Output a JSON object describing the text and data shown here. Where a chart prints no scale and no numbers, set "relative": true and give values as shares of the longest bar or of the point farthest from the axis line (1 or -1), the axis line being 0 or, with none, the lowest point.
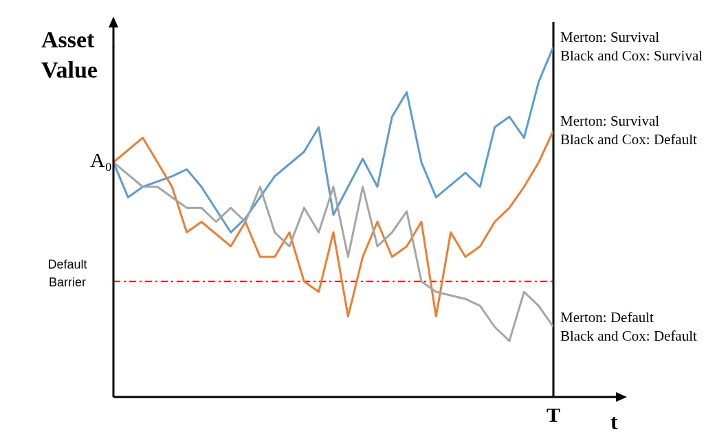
{
  "chart_data": {
    "type": "line",
    "relative": true,
    "ylabel": "Asset Value",
    "xlabel": "t",
    "categories": [
      null,
      null,
      null,
      null,
      null,
      null,
      null,
      null,
      null,
      null,
      null,
      null,
      null,
      null,
      null,
      null,
      null,
      null,
      null,
      null,
      null,
      null,
      null,
      null,
      null,
      null,
      null,
      null,
      null,
      null,
      null
    ],
    "series": [
      {
        "name": "Merton: Survival\nBlack and Cox: Survival",
        "color": "#5b9bd5",
        "values": [
          0.67,
          0.57,
          0.6,
          null,
          0.63,
          0.65,
          0.6,
          null,
          0.47,
          0.51,
          null,
          0.63,
          null,
          0.7,
          0.77,
          0.52,
          0.6,
          0.68,
          0.6,
          0.8,
          0.87,
          0.67,
          0.57,
          null,
          0.64,
          0.6,
          0.77,
          0.8,
          0.74,
          0.9,
          1
        ]
      },
      {
        "name": "Merton: Survival\nBlack and Cox: Default",
        "color": "#ed7d31",
        "values": [
          0.67,
          null,
          0.74,
          null,
          0.6,
          0.47,
          0.5,
          null,
          0.43,
          0.5,
          0.4,
          0.4,
          0.47,
          0.33,
          0.3,
          0.47,
          0.23,
          0.4,
          0.5,
          0.4,
          0.43,
          0.5,
          0.23,
          0.47,
          0.4,
          0.43,
          0.5,
          0.54,
          0.6,
          0.67,
          0.76
        ]
      },
      {
        "name": "Merton: Default\nBlack and Cox: Default",
        "color": "#a5a5a5",
        "values": [
          0.67,
          null,
          0.6,
          0.6,
          null,
          0.54,
          0.54,
          0.5,
          0.54,
          0.5,
          0.6,
          0.47,
          0.43,
          0.54,
          0.47,
          0.6,
          0.4,
          0.6,
          0.43,
          0.47,
          0.53,
          0.33,
          0.3,
          null,
          0.28,
          0.26,
          0.2,
          0.16,
          0.3,
          0.26,
          0.2
        ]
      }
    ],
    "marker": "none",
    "line_style": "solid",
    "ref_lines": [
      {
        "axis": "y",
        "value": 0.33,
        "label": "Default Barrier",
        "color": "#ff0000",
        "line_style": "dashed"
      },
      {
        "axis": "x",
        "label": "T",
        "color": "#000000",
        "line_style": "solid"
      }
    ],
    "annotations": [
      "A₀"
    ]
  }
}
